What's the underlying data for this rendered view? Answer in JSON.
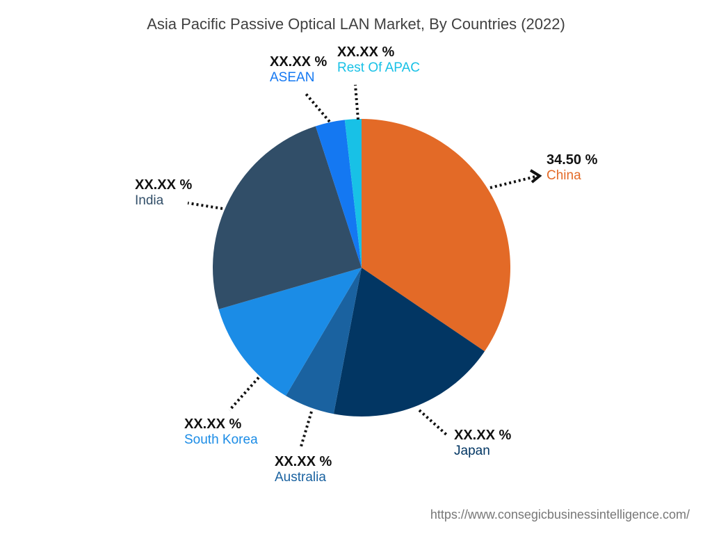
{
  "chart_data": {
    "type": "pie",
    "title": "Asia Pacific Passive Optical LAN Market, By Countries (2022)",
    "slices": [
      {
        "name": "China",
        "value": 34.5,
        "label": "34.50 %",
        "color": "#e36a27"
      },
      {
        "name": "Japan",
        "value": 18.5,
        "label": "XX.XX %",
        "color": "#023663"
      },
      {
        "name": "Australia",
        "value": 5.5,
        "label": "XX.XX %",
        "color": "#1a62a0"
      },
      {
        "name": "South Korea",
        "value": 12.0,
        "label": "XX.XX %",
        "color": "#1b8ce6"
      },
      {
        "name": "India",
        "value": 24.5,
        "label": "XX.XX %",
        "color": "#314e68"
      },
      {
        "name": "ASEAN",
        "value": 3.2,
        "label": "XX.XX %",
        "color": "#1478f2"
      },
      {
        "name": "Rest Of APAC",
        "value": 1.8,
        "label": "XX.XX %",
        "color": "#18c1e6"
      }
    ],
    "start": "12 o'clock",
    "direction": "clockwise",
    "legend": "none"
  },
  "source": "https://www.consegicbusinessintelligence.com/"
}
